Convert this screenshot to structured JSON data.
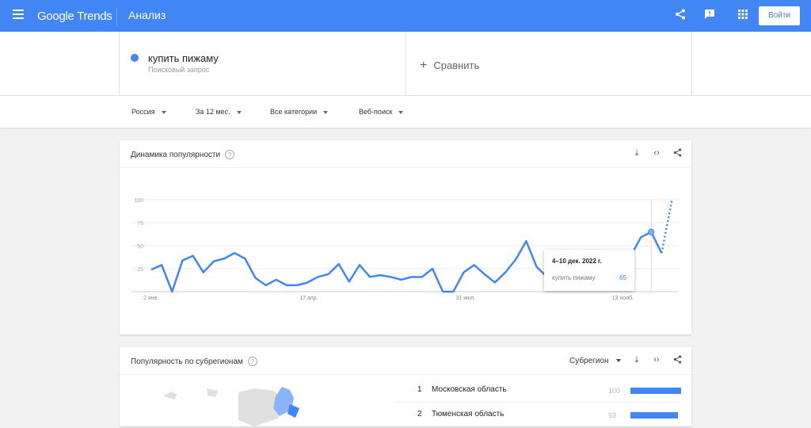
{
  "header": {
    "logo": "Google Trends",
    "title": "Анализ",
    "login": "Войти",
    "icons": [
      "menu-icon",
      "share-icon",
      "feedback-icon",
      "apps-icon"
    ]
  },
  "query": {
    "term": "купить пижаму",
    "type": "Поисковый запрос",
    "color": "#4285f4",
    "compare": "Сравнить"
  },
  "filters": [
    "Россия",
    "За 12 мес.",
    "Все категории",
    "Веб-поиск"
  ],
  "interest": {
    "title": "Динамика популярности",
    "tooltip": {
      "date": "4–10 дек. 2022 г.",
      "term": "купить пижаму",
      "value": "65"
    }
  },
  "chart_data": {
    "type": "line",
    "yticks": [
      "100",
      "75",
      "50",
      "25"
    ],
    "ylim": [
      0,
      100
    ],
    "xtick_labels": [
      "2 янв.",
      "17 апр.",
      "31 июл.",
      "13 нояб."
    ],
    "xtick_index": [
      0,
      15,
      30,
      45
    ],
    "series": [
      {
        "name": "купить пижаму",
        "color": "#4285f4",
        "values": [
          24,
          29,
          0,
          34,
          39,
          21,
          33,
          36,
          42,
          36,
          15,
          7,
          13,
          7,
          7,
          10,
          16,
          19,
          30,
          11,
          29,
          16,
          18,
          16,
          13,
          16,
          16,
          25,
          0,
          0,
          21,
          29,
          19,
          10,
          21,
          35,
          55,
          27,
          16,
          8,
          20,
          8,
          30,
          30,
          25,
          35,
          38,
          59,
          65,
          42
        ],
        "partial_last": 100
      }
    ],
    "highlight_index": 48,
    "grid": true
  },
  "regions": {
    "title": "Популярность по субрегионам",
    "selector": "Субрегион",
    "rows": [
      {
        "rank": "1",
        "name": "Московская область",
        "value": "100",
        "pct": 100
      },
      {
        "rank": "2",
        "name": "Тюменская область",
        "value": "93",
        "pct": 93
      }
    ]
  }
}
